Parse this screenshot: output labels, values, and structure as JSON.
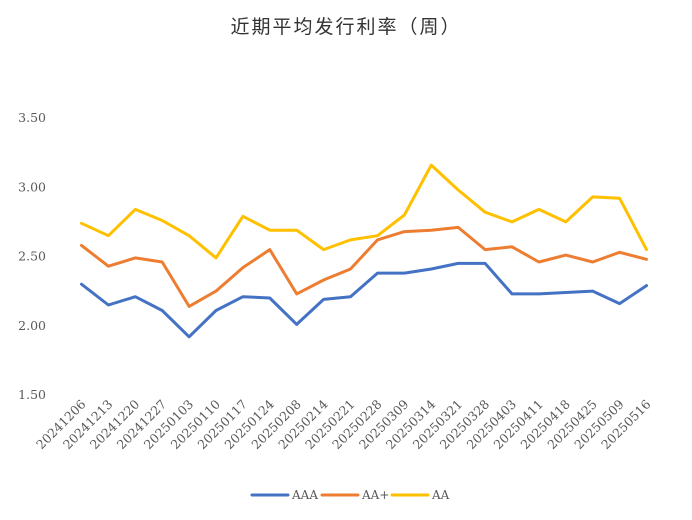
{
  "chart_data": {
    "type": "line",
    "title": "近期平均发行利率（周）",
    "xlabel": "",
    "ylabel": "",
    "x": [
      "20241206",
      "20241213",
      "20241220",
      "20241227",
      "20250103",
      "20250110",
      "20250117",
      "20250124",
      "20250208",
      "20250214",
      "20250221",
      "20250228",
      "20250309",
      "20250314",
      "20250321",
      "20250328",
      "20250403",
      "20250411",
      "20250418",
      "20250425",
      "20250509",
      "20250516"
    ],
    "yticks": [
      "1.50",
      "2.00",
      "2.50",
      "3.00",
      "3.50"
    ],
    "ylim": [
      1.5,
      3.5
    ],
    "grid": false,
    "legend_position": "bottom",
    "series": [
      {
        "name": "AAA",
        "color": "#4472C4",
        "values": [
          2.3,
          2.15,
          2.21,
          2.11,
          1.92,
          2.11,
          2.21,
          2.2,
          2.01,
          2.19,
          2.21,
          2.38,
          2.38,
          2.41,
          2.45,
          2.45,
          2.23,
          2.23,
          2.24,
          2.25,
          2.16,
          2.29
        ]
      },
      {
        "name": "AA+",
        "color": "#ED7D31",
        "values": [
          2.58,
          2.43,
          2.49,
          2.46,
          2.14,
          2.25,
          2.42,
          2.55,
          2.23,
          2.33,
          2.41,
          2.62,
          2.68,
          2.69,
          2.71,
          2.55,
          2.57,
          2.46,
          2.51,
          2.46,
          2.53,
          2.48
        ]
      },
      {
        "name": "AA",
        "color": "#FFC000",
        "values": [
          2.74,
          2.65,
          2.84,
          2.76,
          2.65,
          2.49,
          2.79,
          2.69,
          2.69,
          2.55,
          2.62,
          2.65,
          2.8,
          3.16,
          2.98,
          2.82,
          2.75,
          2.84,
          2.75,
          2.93,
          2.92,
          2.55
        ]
      }
    ]
  }
}
